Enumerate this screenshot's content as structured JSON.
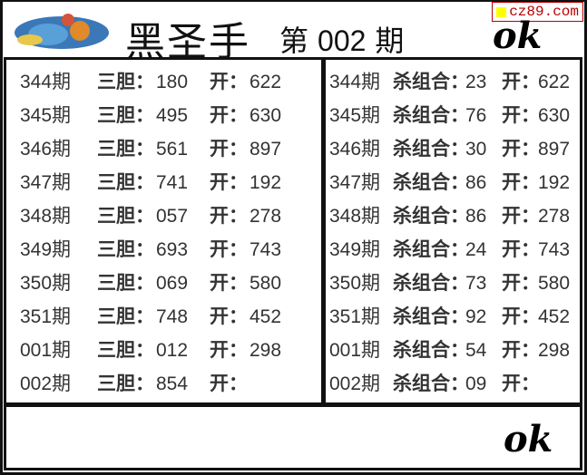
{
  "header": {
    "title": "黑圣手",
    "issue_prefix": "第",
    "issue_number": "002",
    "issue_suffix": "期",
    "watermark": "cz89.com",
    "signature": "ok"
  },
  "left_table": {
    "label": "三胆：",
    "open_label": "开：",
    "rows": [
      {
        "period": "344期",
        "value": "180",
        "open": "622"
      },
      {
        "period": "345期",
        "value": "495",
        "open": "630"
      },
      {
        "period": "346期",
        "value": "561",
        "open": "897"
      },
      {
        "period": "347期",
        "value": "741",
        "open": "192"
      },
      {
        "period": "348期",
        "value": "057",
        "open": "278"
      },
      {
        "period": "349期",
        "value": "693",
        "open": "743"
      },
      {
        "period": "350期",
        "value": "069",
        "open": "580"
      },
      {
        "period": "351期",
        "value": "748",
        "open": "452"
      },
      {
        "period": "001期",
        "value": "012",
        "open": "298"
      },
      {
        "period": "002期",
        "value": "854",
        "open": ""
      }
    ]
  },
  "right_table": {
    "label": "杀组合：",
    "open_label": "开：",
    "rows": [
      {
        "period": "344期",
        "value": "23",
        "open": "622"
      },
      {
        "period": "345期",
        "value": "76",
        "open": "630"
      },
      {
        "period": "346期",
        "value": "30",
        "open": "897"
      },
      {
        "period": "347期",
        "value": "86",
        "open": "192"
      },
      {
        "period": "348期",
        "value": "86",
        "open": "278"
      },
      {
        "period": "349期",
        "value": "24",
        "open": "743"
      },
      {
        "period": "350期",
        "value": "73",
        "open": "580"
      },
      {
        "period": "351期",
        "value": "92",
        "open": "452"
      },
      {
        "period": "001期",
        "value": "54",
        "open": "298"
      },
      {
        "period": "002期",
        "value": "09",
        "open": ""
      }
    ]
  }
}
